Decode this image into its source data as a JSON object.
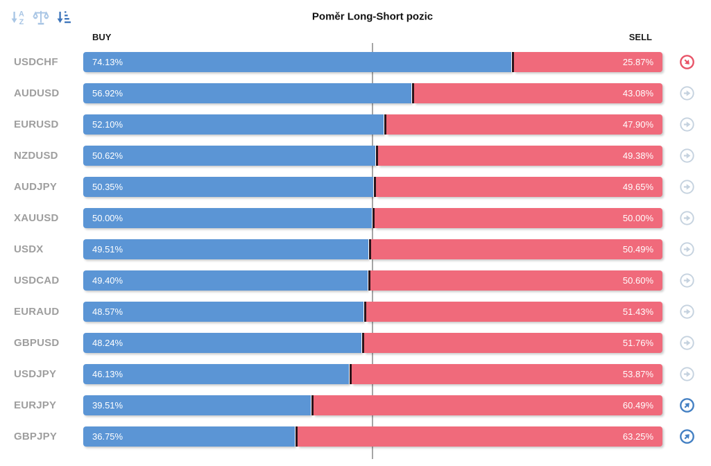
{
  "title": "Poměr Long-Short pozic",
  "columns": {
    "buy": "BUY",
    "sell": "SELL"
  },
  "toolbar": {
    "icons": [
      {
        "name": "sort-alphabetical",
        "active": false
      },
      {
        "name": "balance-scale",
        "active": false
      },
      {
        "name": "sort-amount",
        "active": true
      }
    ]
  },
  "colors": {
    "buy_bar": "#5b95d5",
    "sell_bar": "#f06a7b",
    "symbol_label": "#9e9e9e",
    "header_text": "#1b1b1b",
    "center_line": "#a6a6a6",
    "bar_divider": "#2b151b",
    "signal_neutral": "#c5d2df",
    "signal_up": "#4480c3",
    "signal_down": "#e85468",
    "toolbar_inactive": "#a9c6e5",
    "toolbar_active": "#3f76bb"
  },
  "chart_data": {
    "type": "bar",
    "orientation": "horizontal",
    "stacked": true,
    "title": "Poměr Long-Short pozic",
    "categories": [
      "USDCHF",
      "AUDUSD",
      "EURUSD",
      "NZDUSD",
      "AUDJPY",
      "XAUUSD",
      "USDX",
      "USDCAD",
      "EURAUD",
      "GBPUSD",
      "USDJPY",
      "EURJPY",
      "GBPJPY"
    ],
    "series": [
      {
        "name": "BUY",
        "color": "#5b95d5",
        "values": [
          74.13,
          56.92,
          52.1,
          50.62,
          50.35,
          50.0,
          49.51,
          49.4,
          48.57,
          48.24,
          46.13,
          39.51,
          36.75
        ]
      },
      {
        "name": "SELL",
        "color": "#f06a7b",
        "values": [
          25.87,
          43.08,
          47.9,
          49.38,
          49.65,
          50.0,
          50.49,
          50.6,
          51.43,
          51.76,
          53.87,
          60.49,
          63.25
        ]
      }
    ],
    "xlim": [
      0,
      100
    ],
    "center_line": 50,
    "legend_position": "top",
    "grid": false
  },
  "rows": [
    {
      "symbol": "USDCHF",
      "buy": 74.13,
      "buy_label": "74.13%",
      "sell": 25.87,
      "sell_label": "25.87%",
      "signal": "down"
    },
    {
      "symbol": "AUDUSD",
      "buy": 56.92,
      "buy_label": "56.92%",
      "sell": 43.08,
      "sell_label": "43.08%",
      "signal": "neutral"
    },
    {
      "symbol": "EURUSD",
      "buy": 52.1,
      "buy_label": "52.10%",
      "sell": 47.9,
      "sell_label": "47.90%",
      "signal": "neutral"
    },
    {
      "symbol": "NZDUSD",
      "buy": 50.62,
      "buy_label": "50.62%",
      "sell": 49.38,
      "sell_label": "49.38%",
      "signal": "neutral"
    },
    {
      "symbol": "AUDJPY",
      "buy": 50.35,
      "buy_label": "50.35%",
      "sell": 49.65,
      "sell_label": "49.65%",
      "signal": "neutral"
    },
    {
      "symbol": "XAUUSD",
      "buy": 50.0,
      "buy_label": "50.00%",
      "sell": 50.0,
      "sell_label": "50.00%",
      "signal": "neutral"
    },
    {
      "symbol": "USDX",
      "buy": 49.51,
      "buy_label": "49.51%",
      "sell": 50.49,
      "sell_label": "50.49%",
      "signal": "neutral"
    },
    {
      "symbol": "USDCAD",
      "buy": 49.4,
      "buy_label": "49.40%",
      "sell": 50.6,
      "sell_label": "50.60%",
      "signal": "neutral"
    },
    {
      "symbol": "EURAUD",
      "buy": 48.57,
      "buy_label": "48.57%",
      "sell": 51.43,
      "sell_label": "51.43%",
      "signal": "neutral"
    },
    {
      "symbol": "GBPUSD",
      "buy": 48.24,
      "buy_label": "48.24%",
      "sell": 51.76,
      "sell_label": "51.76%",
      "signal": "neutral"
    },
    {
      "symbol": "USDJPY",
      "buy": 46.13,
      "buy_label": "46.13%",
      "sell": 53.87,
      "sell_label": "53.87%",
      "signal": "neutral"
    },
    {
      "symbol": "EURJPY",
      "buy": 39.51,
      "buy_label": "39.51%",
      "sell": 60.49,
      "sell_label": "60.49%",
      "signal": "up"
    },
    {
      "symbol": "GBPJPY",
      "buy": 36.75,
      "buy_label": "36.75%",
      "sell": 63.25,
      "sell_label": "63.25%",
      "signal": "up"
    }
  ]
}
